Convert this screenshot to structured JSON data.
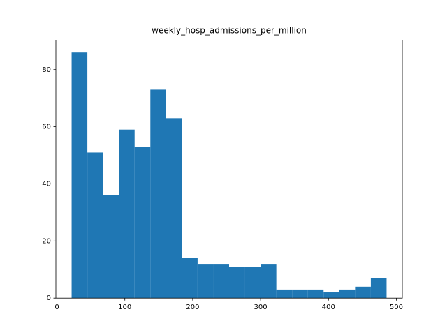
{
  "chart_data": {
    "type": "histogram",
    "title": "weekly_hosp_admissions_per_million",
    "bins": [
      21.6,
      44.8,
      68,
      91.2,
      114.4,
      137.6,
      160.8,
      184,
      207.2,
      230.4,
      253.6,
      276.8,
      300,
      323.2,
      346.4,
      369.6,
      392.8,
      416,
      439.2,
      462.4,
      485.6
    ],
    "values": [
      86,
      51,
      36,
      59,
      53,
      73,
      63,
      14,
      12,
      12,
      11,
      11,
      12,
      3,
      3,
      3,
      2,
      3,
      4,
      7
    ],
    "color": "#1f77b4",
    "xlim": [
      -1.6,
      508.8
    ],
    "xticks": [
      0,
      100,
      200,
      300,
      400,
      500
    ],
    "ylim": [
      0,
      90.3
    ],
    "yticks": [
      0,
      20,
      40,
      60,
      80
    ],
    "grid": false
  }
}
